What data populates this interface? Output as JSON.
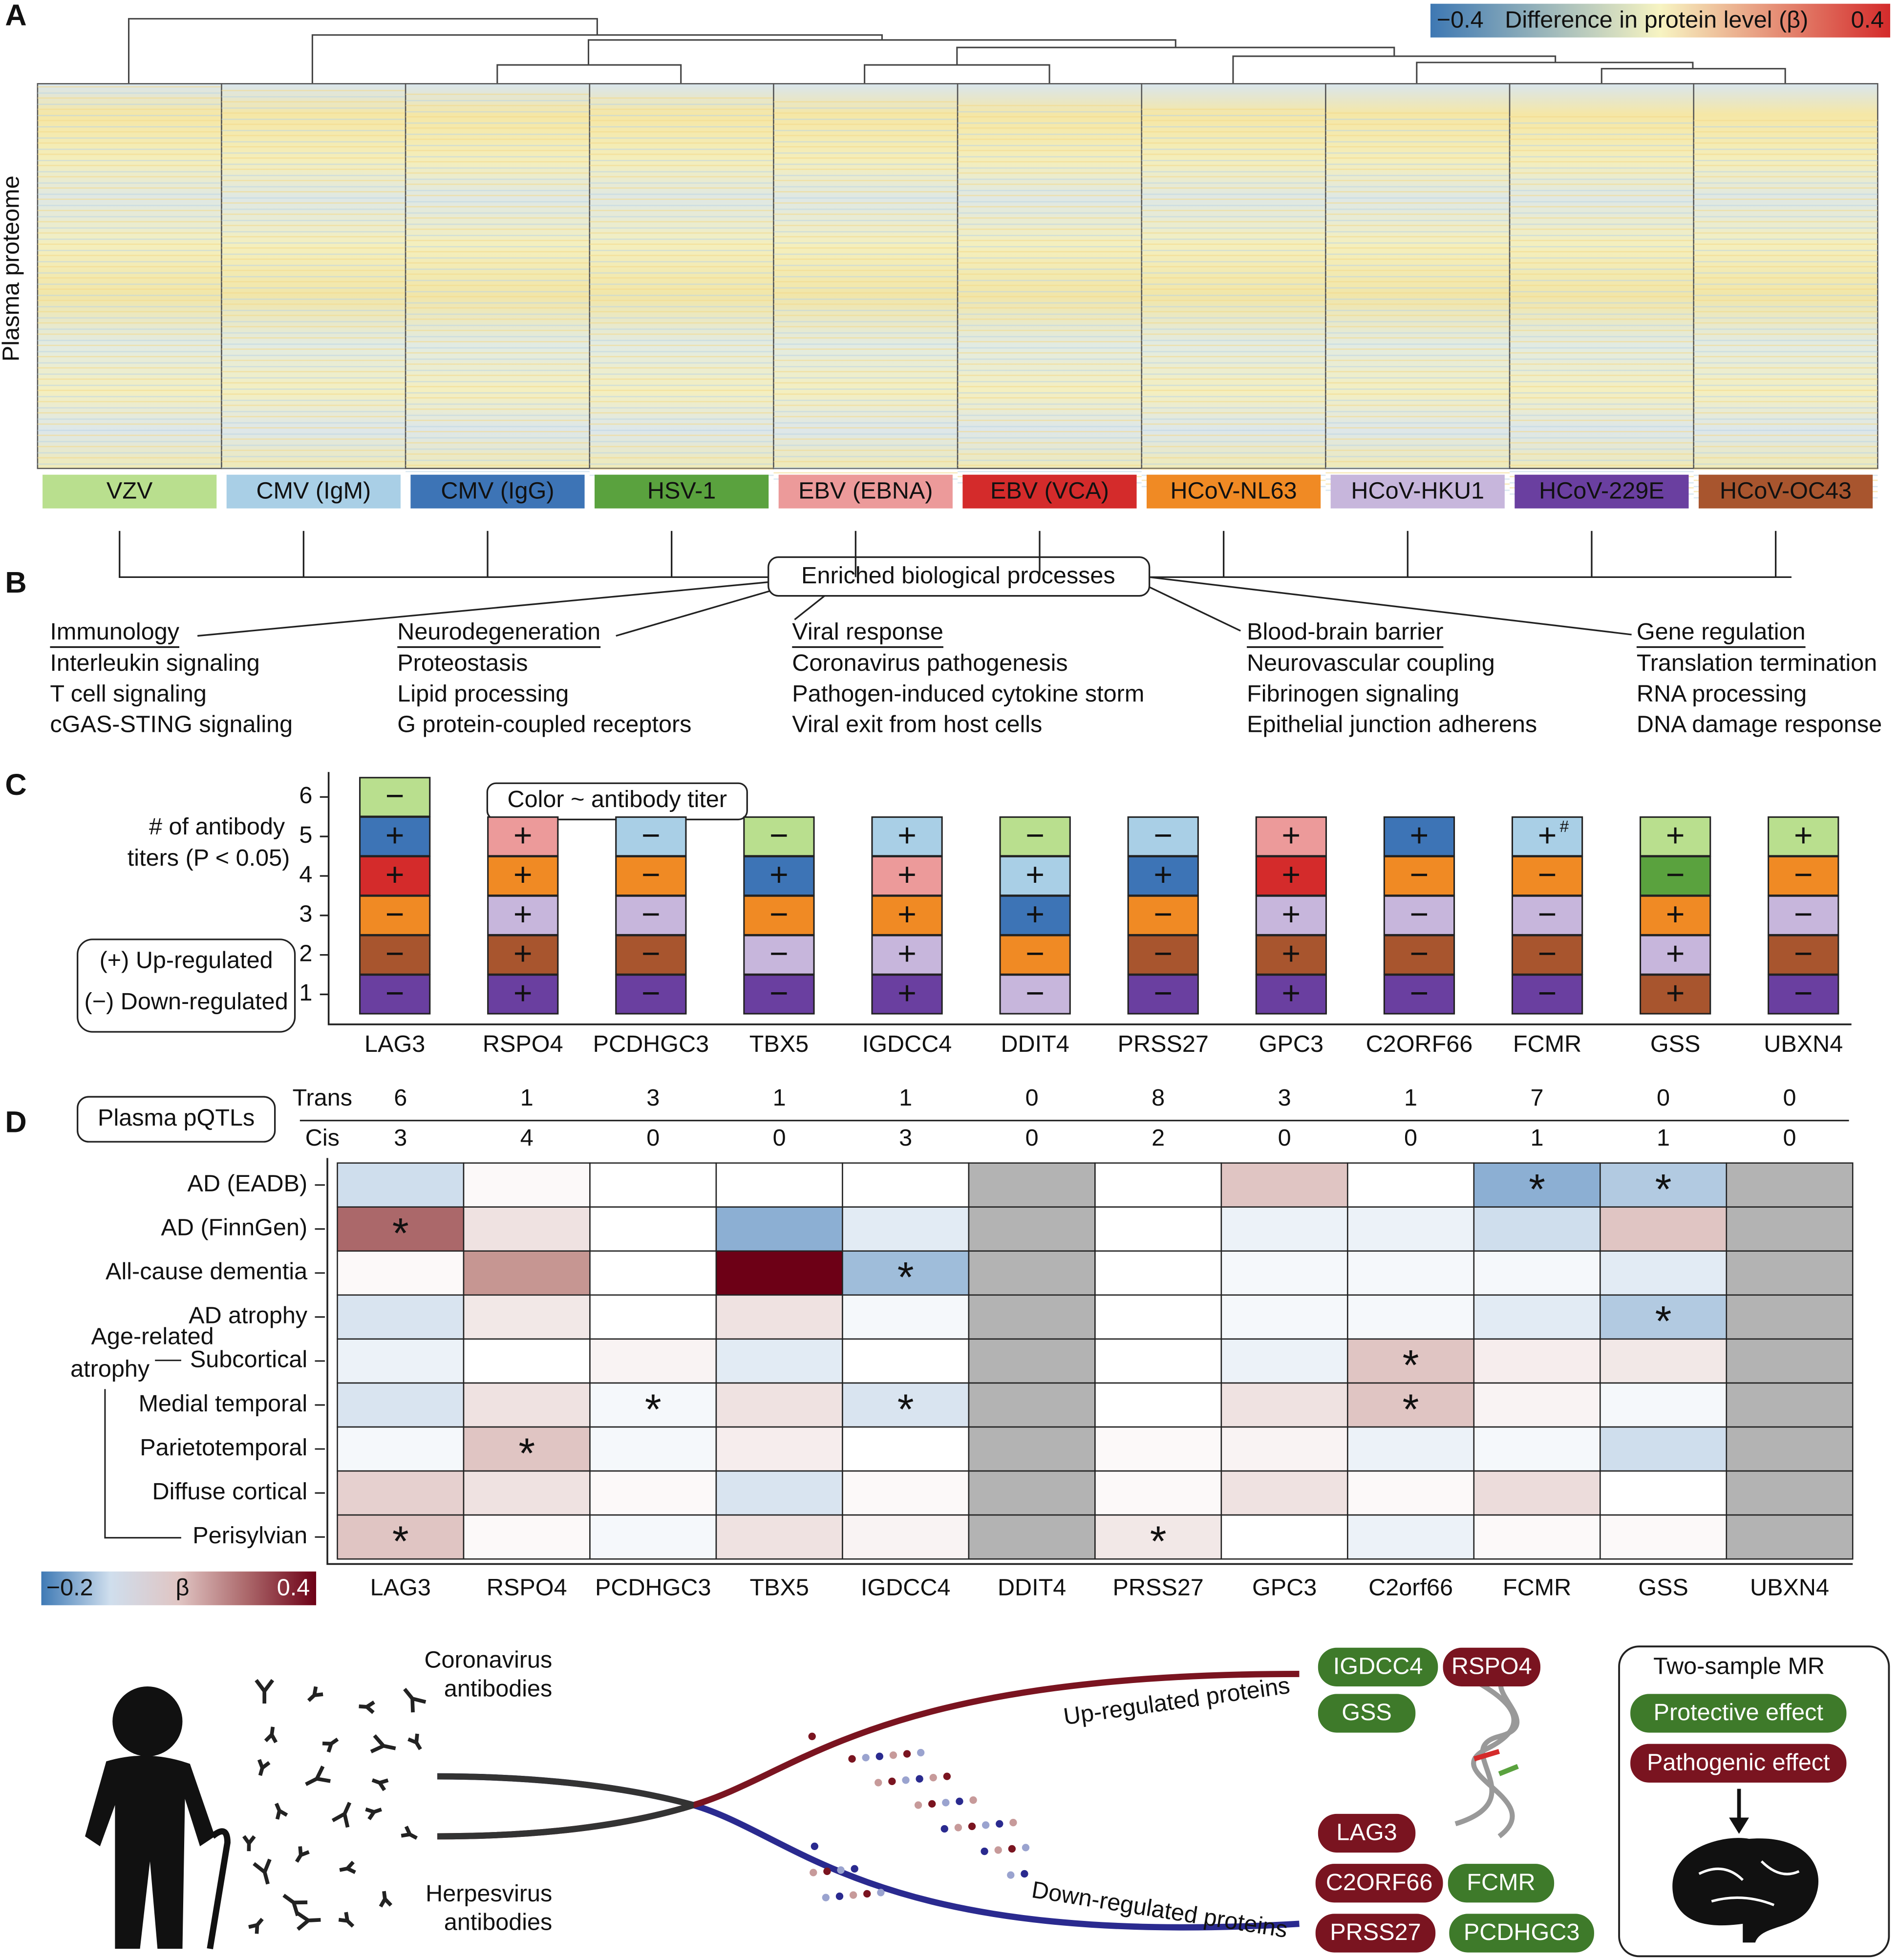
{
  "panel_a": {
    "label": "A",
    "y_axis_label": "Plasma proteome",
    "color_scale": {
      "min": {
        "value": -0.4,
        "label": "−0.4"
      },
      "title": "Difference in protein level (β)",
      "max": 0.4
    },
    "viruses": [
      {
        "name": "VZV",
        "color": "#b9df8e"
      },
      {
        "name": "CMV (IgM)",
        "color": "#a9cfe6"
      },
      {
        "name": "CMV (IgG)",
        "color": "#3d74b6"
      },
      {
        "name": "HSV-1",
        "color": "#5aa23e"
      },
      {
        "name": "EBV (EBNA)",
        "color": "#ec9a9a"
      },
      {
        "name": "EBV (VCA)",
        "color": "#d42b2b"
      },
      {
        "name": "HCoV-NL63",
        "color": "#f08a24"
      },
      {
        "name": "HCoV-HKU1",
        "color": "#c7b6dc"
      },
      {
        "name": "HCoV-229E",
        "color": "#6a3fa0"
      },
      {
        "name": "HCoV-OC43",
        "color": "#a8552e"
      }
    ]
  },
  "panel_b": {
    "label": "B",
    "hub": "Enriched biological processes",
    "groups": [
      {
        "title": "Immunology",
        "items": [
          "Interleukin signaling",
          "T cell signaling",
          "cGAS-STING signaling"
        ]
      },
      {
        "title": "Neurodegeneration",
        "items": [
          "Proteostasis",
          "Lipid processing",
          "G protein-coupled receptors"
        ]
      },
      {
        "title": "Viral response",
        "items": [
          "Coronavirus pathogenesis",
          "Pathogen-induced cytokine storm",
          "Viral exit from host cells"
        ]
      },
      {
        "title": "Blood-brain barrier",
        "items": [
          "Neurovascular coupling",
          "Fibrinogen signaling",
          "Epithelial junction adherens"
        ]
      },
      {
        "title": "Gene regulation",
        "items": [
          "Translation termination",
          "RNA processing",
          "DNA damage response"
        ]
      }
    ]
  },
  "panel_c": {
    "label": "C",
    "y_axis_label": [
      "# of antibody",
      "titers (P < 0.05)"
    ],
    "yticks": [
      1,
      2,
      3,
      4,
      5,
      6
    ],
    "color_note": "Color ~ antibody titer",
    "sign_legend": [
      "(+) Up-regulated",
      "(−) Down-regulated"
    ],
    "genes": [
      {
        "name": "LAG3",
        "tiles": [
          {
            "color": "#6a3fa0",
            "sign": "−"
          },
          {
            "color": "#a8552e",
            "sign": "−"
          },
          {
            "color": "#f08a24",
            "sign": "−"
          },
          {
            "color": "#d42b2b",
            "sign": "+"
          },
          {
            "color": "#3d74b6",
            "sign": "+"
          },
          {
            "color": "#b9df8e",
            "sign": "−"
          }
        ]
      },
      {
        "name": "RSPO4",
        "tiles": [
          {
            "color": "#6a3fa0",
            "sign": "+"
          },
          {
            "color": "#a8552e",
            "sign": "+"
          },
          {
            "color": "#c7b6dc",
            "sign": "+"
          },
          {
            "color": "#f08a24",
            "sign": "+"
          },
          {
            "color": "#ec9a9a",
            "sign": "+"
          }
        ]
      },
      {
        "name": "PCDHGC3",
        "tiles": [
          {
            "color": "#6a3fa0",
            "sign": "−"
          },
          {
            "color": "#a8552e",
            "sign": "−"
          },
          {
            "color": "#c7b6dc",
            "sign": "−"
          },
          {
            "color": "#f08a24",
            "sign": "−"
          },
          {
            "color": "#a9cfe6",
            "sign": "−"
          }
        ]
      },
      {
        "name": "TBX5",
        "tiles": [
          {
            "color": "#6a3fa0",
            "sign": "−"
          },
          {
            "color": "#c7b6dc",
            "sign": "−"
          },
          {
            "color": "#f08a24",
            "sign": "−"
          },
          {
            "color": "#3d74b6",
            "sign": "+"
          },
          {
            "color": "#b9df8e",
            "sign": "−"
          }
        ]
      },
      {
        "name": "IGDCC4",
        "tiles": [
          {
            "color": "#6a3fa0",
            "sign": "+"
          },
          {
            "color": "#c7b6dc",
            "sign": "+"
          },
          {
            "color": "#f08a24",
            "sign": "+"
          },
          {
            "color": "#ec9a9a",
            "sign": "+"
          },
          {
            "color": "#a9cfe6",
            "sign": "+"
          }
        ]
      },
      {
        "name": "DDIT4",
        "tiles": [
          {
            "color": "#c7b6dc",
            "sign": "−"
          },
          {
            "color": "#f08a24",
            "sign": "−"
          },
          {
            "color": "#3d74b6",
            "sign": "+"
          },
          {
            "color": "#a9cfe6",
            "sign": "+"
          },
          {
            "color": "#b9df8e",
            "sign": "−"
          }
        ]
      },
      {
        "name": "PRSS27",
        "tiles": [
          {
            "color": "#6a3fa0",
            "sign": "−"
          },
          {
            "color": "#a8552e",
            "sign": "−"
          },
          {
            "color": "#f08a24",
            "sign": "−"
          },
          {
            "color": "#3d74b6",
            "sign": "+"
          },
          {
            "color": "#a9cfe6",
            "sign": "−"
          }
        ]
      },
      {
        "name": "GPC3",
        "tiles": [
          {
            "color": "#6a3fa0",
            "sign": "+"
          },
          {
            "color": "#a8552e",
            "sign": "+"
          },
          {
            "color": "#c7b6dc",
            "sign": "+"
          },
          {
            "color": "#d42b2b",
            "sign": "+"
          },
          {
            "color": "#ec9a9a",
            "sign": "+"
          }
        ]
      },
      {
        "name": "C2ORF66",
        "tiles": [
          {
            "color": "#6a3fa0",
            "sign": "−"
          },
          {
            "color": "#a8552e",
            "sign": "−"
          },
          {
            "color": "#c7b6dc",
            "sign": "−"
          },
          {
            "color": "#f08a24",
            "sign": "−"
          },
          {
            "color": "#3d74b6",
            "sign": "+"
          }
        ]
      },
      {
        "name": "FCMR",
        "tiles": [
          {
            "color": "#6a3fa0",
            "sign": "−"
          },
          {
            "color": "#a8552e",
            "sign": "−"
          },
          {
            "color": "#c7b6dc",
            "sign": "−"
          },
          {
            "color": "#f08a24",
            "sign": "−"
          },
          {
            "color": "#a9cfe6",
            "sign": "+",
            "mark": "#"
          }
        ]
      },
      {
        "name": "GSS",
        "tiles": [
          {
            "color": "#a8552e",
            "sign": "+"
          },
          {
            "color": "#c7b6dc",
            "sign": "+"
          },
          {
            "color": "#f08a24",
            "sign": "+"
          },
          {
            "color": "#5aa23e",
            "sign": "−"
          },
          {
            "color": "#b9df8e",
            "sign": "+"
          }
        ]
      },
      {
        "name": "UBXN4",
        "tiles": [
          {
            "color": "#6a3fa0",
            "sign": "−"
          },
          {
            "color": "#a8552e",
            "sign": "−"
          },
          {
            "color": "#c7b6dc",
            "sign": "−"
          },
          {
            "color": "#f08a24",
            "sign": "−"
          },
          {
            "color": "#b9df8e",
            "sign": "+"
          }
        ]
      }
    ]
  },
  "panel_d": {
    "label": "D",
    "pqtl_title": "Plasma pQTLs",
    "pqtl_rows": [
      {
        "name": "Trans",
        "values": [
          6,
          1,
          3,
          1,
          1,
          0,
          8,
          3,
          1,
          7,
          0,
          0
        ]
      },
      {
        "name": "Cis",
        "values": [
          3,
          4,
          0,
          0,
          3,
          0,
          2,
          0,
          0,
          1,
          1,
          0
        ]
      }
    ],
    "rows": [
      "AD (EADB)",
      "AD (FinnGen)",
      "All-cause dementia",
      "AD atrophy",
      "Subcortical",
      "Medial temporal",
      "Parietotemporal",
      "Diffuse cortical",
      "Perisylvian"
    ],
    "row_group": [
      "Age-related",
      "atrophy"
    ],
    "columns": [
      "LAG3",
      "RSPO4",
      "PCDHGC3",
      "TBX5",
      "IGDCC4",
      "DDIT4",
      "PRSS27",
      "GPC3",
      "C2orf66",
      "FCMR",
      "GSS",
      "UBXN4"
    ],
    "values": [
      [
        -0.05,
        0.01,
        0,
        0,
        0,
        null,
        0,
        0.1,
        0,
        -0.12,
        -0.08,
        null
      ],
      [
        0.25,
        0.05,
        0,
        -0.12,
        -0.03,
        null,
        0,
        -0.02,
        -0.02,
        -0.05,
        0.1,
        null
      ],
      [
        0.01,
        0.18,
        0,
        0.4,
        -0.1,
        null,
        0,
        -0.01,
        -0.01,
        -0.01,
        -0.03,
        null
      ],
      [
        -0.04,
        0.04,
        0,
        0.05,
        -0.01,
        null,
        0,
        -0.01,
        -0.01,
        -0.03,
        -0.08,
        null
      ],
      [
        -0.02,
        0,
        0.02,
        -0.03,
        0,
        null,
        0,
        -0.02,
        0.1,
        0.03,
        0.04,
        null
      ],
      [
        -0.04,
        0.05,
        -0.01,
        0.05,
        -0.04,
        null,
        0,
        0.05,
        0.1,
        0.02,
        -0.01,
        null
      ],
      [
        -0.01,
        0.1,
        -0.01,
        0.03,
        0,
        null,
        0.01,
        0.02,
        -0.02,
        -0.01,
        -0.05,
        null
      ],
      [
        0.08,
        0.05,
        0.01,
        -0.04,
        0.01,
        null,
        0.01,
        0.05,
        0.01,
        0.06,
        0,
        null
      ],
      [
        0.1,
        0.01,
        -0.01,
        0.05,
        0.02,
        null,
        0.04,
        0,
        -0.02,
        0.01,
        0.01,
        null
      ]
    ],
    "significant": [
      [
        false,
        false,
        false,
        false,
        false,
        false,
        false,
        false,
        false,
        true,
        true,
        false
      ],
      [
        true,
        false,
        false,
        false,
        false,
        false,
        false,
        false,
        false,
        false,
        false,
        false
      ],
      [
        false,
        false,
        false,
        false,
        true,
        false,
        false,
        false,
        false,
        false,
        false,
        false
      ],
      [
        false,
        false,
        false,
        false,
        false,
        false,
        false,
        false,
        false,
        false,
        true,
        false
      ],
      [
        false,
        false,
        false,
        false,
        false,
        false,
        false,
        false,
        true,
        false,
        false,
        false
      ],
      [
        false,
        false,
        true,
        false,
        true,
        false,
        false,
        false,
        true,
        false,
        false,
        false
      ],
      [
        false,
        true,
        false,
        false,
        false,
        false,
        false,
        false,
        false,
        false,
        false,
        false
      ],
      [
        false,
        false,
        false,
        false,
        false,
        false,
        false,
        false,
        false,
        false,
        false,
        false
      ],
      [
        true,
        false,
        false,
        false,
        false,
        false,
        true,
        false,
        false,
        false,
        false,
        false
      ]
    ],
    "significance_label": "*",
    "null_color": "#b3b3b3",
    "color_scale": {
      "min": {
        "value": -0.2,
        "label": "−0.2"
      },
      "title": "β",
      "max": 0.4
    }
  },
  "illustration": {
    "coronavirus": [
      "Coronavirus",
      "antibodies"
    ],
    "herpesvirus": [
      "Herpesvirus",
      "antibodies"
    ],
    "up": "Up-regulated proteins",
    "down": "Down-regulated proteins",
    "up_proteins": [
      {
        "name": "IGDCC4",
        "color": "#3e7a2a"
      },
      {
        "name": "RSPO4",
        "color": "#7a1420"
      },
      {
        "name": "GSS",
        "color": "#3e7a2a"
      }
    ],
    "down_proteins": [
      {
        "name": "LAG3",
        "color": "#7a1420"
      },
      {
        "name": "C2ORF66",
        "color": "#7a1420"
      },
      {
        "name": "FCMR",
        "color": "#3e7a2a"
      },
      {
        "name": "PRSS27",
        "color": "#7a1420"
      },
      {
        "name": "PCDHGC3",
        "color": "#3e7a2a"
      }
    ],
    "mr_title": "Two-sample MR",
    "mr_effects": [
      {
        "name": "Protective effect",
        "color": "#3e7a2a"
      },
      {
        "name": "Pathogenic effect",
        "color": "#7a1420"
      }
    ]
  }
}
